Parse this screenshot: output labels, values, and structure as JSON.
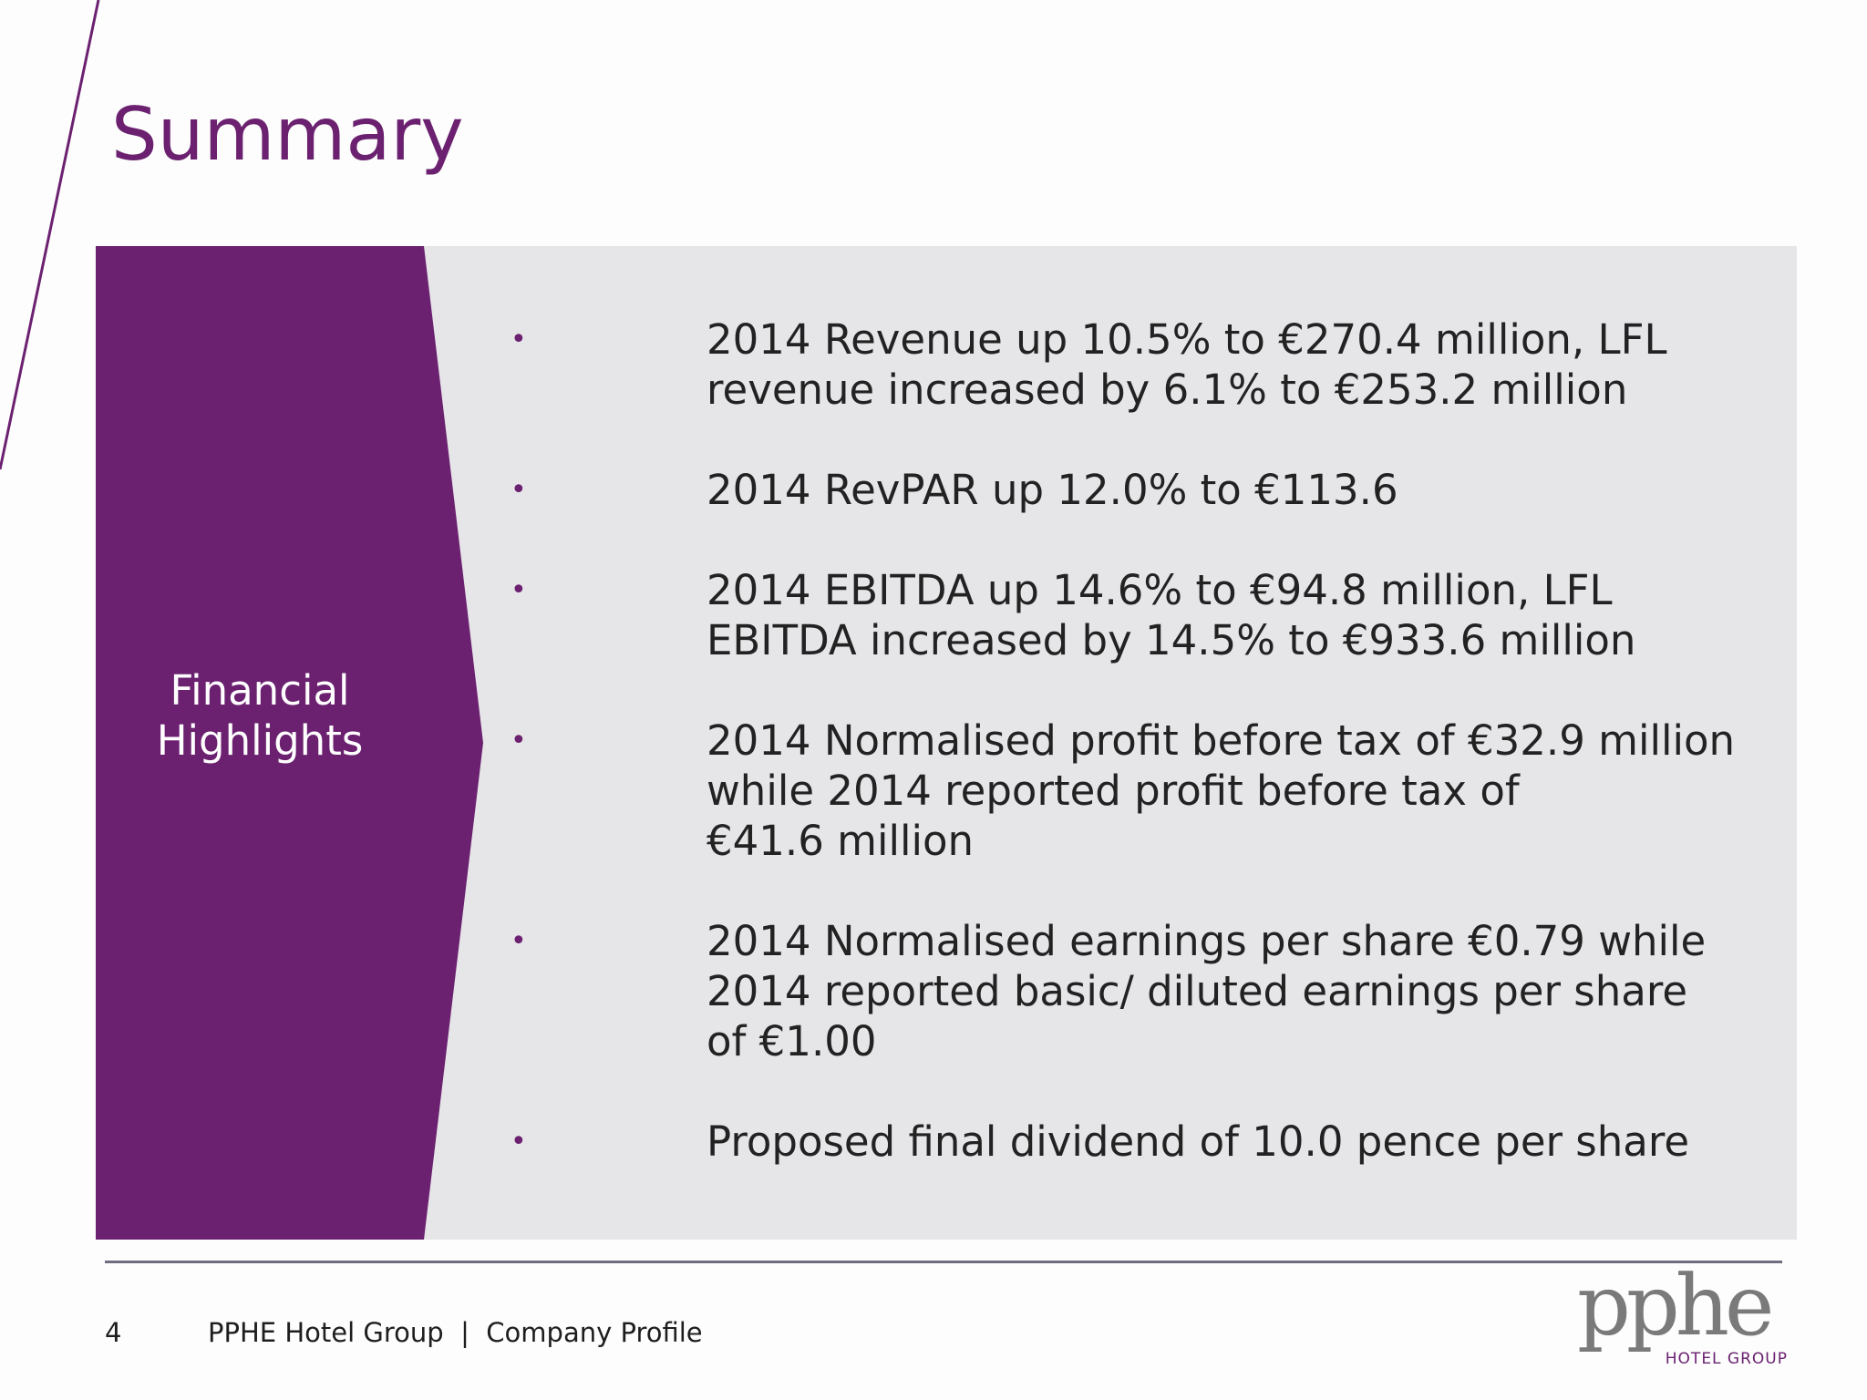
{
  "slide": {
    "title": "Summary"
  },
  "panel": {
    "label_line1": "Financial",
    "label_line2": "Highlights"
  },
  "bullets": [
    {
      "symbol": "•",
      "text": "2014 Revenue up 10.5% to €270.4 million, LFL\nrevenue increased by 6.1% to €253.2 million"
    },
    {
      "symbol": "•",
      "text": "2014 RevPAR up 12.0% to €113.6"
    },
    {
      "symbol": "•",
      "text": "2014 EBITDA up 14.6% to €94.8 million, LFL\nEBITDA increased by 14.5% to €933.6 million"
    },
    {
      "symbol": "•",
      "text": "2014 Normalised profit before tax of €32.9 million\nwhile 2014 reported profit before tax of\n€41.6 million"
    },
    {
      "symbol": "•",
      "text": "2014 Normalised earnings per share €0.79 while\n2014 reported basic/ diluted earnings per share\nof €1.00"
    },
    {
      "symbol": "•",
      "text": "Proposed final dividend of 10.0 pence per share"
    }
  ],
  "footer": {
    "page_number": "4",
    "text": "PPHE Hotel Group  |  Company Profile"
  },
  "logo": {
    "word": "pphe",
    "subtitle": "HOTEL GROUP"
  },
  "colors": {
    "accent": "#6b2170",
    "panel_bg": "#e6e5e8",
    "text": "#222222"
  }
}
